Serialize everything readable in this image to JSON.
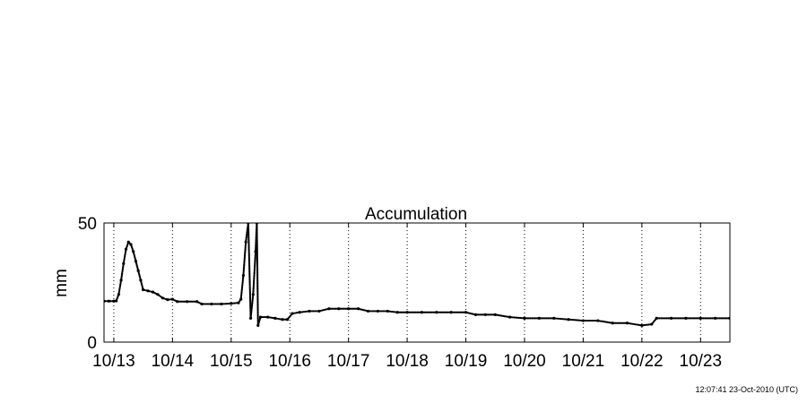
{
  "footer": {
    "timestamp": "12:07:41 23-Oct-2010 (UTC)"
  },
  "chart_data": {
    "type": "scatter",
    "title": "Accumulation",
    "xlabel": "",
    "ylabel": "mm",
    "x_unit": "date (Oct 2010)",
    "xlim": [
      "2010-10-12 20:00",
      "2010-10-23 12:00"
    ],
    "ylim": [
      0,
      50
    ],
    "y_ticks": [
      0,
      50
    ],
    "x_ticks": [
      {
        "date": "2010-10-13 00:00",
        "label": "10/13"
      },
      {
        "date": "2010-10-14 00:00",
        "label": "10/14"
      },
      {
        "date": "2010-10-15 00:00",
        "label": "10/15"
      },
      {
        "date": "2010-10-16 00:00",
        "label": "10/16"
      },
      {
        "date": "2010-10-17 00:00",
        "label": "10/17"
      },
      {
        "date": "2010-10-18 00:00",
        "label": "10/18"
      },
      {
        "date": "2010-10-19 00:00",
        "label": "10/19"
      },
      {
        "date": "2010-10-20 00:00",
        "label": "10/20"
      },
      {
        "date": "2010-10-21 00:00",
        "label": "10/21"
      },
      {
        "date": "2010-10-22 00:00",
        "label": "10/22"
      },
      {
        "date": "2010-10-23 00:00",
        "label": "10/23"
      }
    ],
    "grid": "vertical dotted lines at x ticks",
    "legend": "none",
    "colors": {
      "points": "#000000",
      "grid": "#000000",
      "frame": "#000000"
    },
    "series": [
      {
        "values": [
          [
            "2010-10-12 20:00",
            17.2
          ],
          [
            "2010-10-12 22:00",
            17.2
          ],
          [
            "2010-10-13 00:00",
            17.2
          ],
          [
            "2010-10-13 01:00",
            17.3
          ],
          [
            "2010-10-13 02:00",
            20.0
          ],
          [
            "2010-10-13 03:00",
            26.0
          ],
          [
            "2010-10-13 04:00",
            33.0
          ],
          [
            "2010-10-13 05:00",
            39.0
          ],
          [
            "2010-10-13 06:00",
            42.0
          ],
          [
            "2010-10-13 07:00",
            41.0
          ],
          [
            "2010-10-13 08:00",
            38.0
          ],
          [
            "2010-10-13 09:00",
            34.0
          ],
          [
            "2010-10-13 10:00",
            30.0
          ],
          [
            "2010-10-13 11:00",
            26.0
          ],
          [
            "2010-10-13 12:00",
            22.0
          ],
          [
            "2010-10-13 14:00",
            21.5
          ],
          [
            "2010-10-13 16:00",
            21.0
          ],
          [
            "2010-10-13 18:00",
            20.0
          ],
          [
            "2010-10-13 20:00",
            18.5
          ],
          [
            "2010-10-13 22:00",
            17.8
          ],
          [
            "2010-10-14 00:00",
            18.0
          ],
          [
            "2010-10-14 02:00",
            17.0
          ],
          [
            "2010-10-14 06:00",
            17.0
          ],
          [
            "2010-10-14 10:00",
            17.0
          ],
          [
            "2010-10-14 12:00",
            16.0
          ],
          [
            "2010-10-14 16:00",
            16.0
          ],
          [
            "2010-10-14 20:00",
            16.0
          ],
          [
            "2010-10-15 00:00",
            16.2
          ],
          [
            "2010-10-15 03:00",
            16.5
          ],
          [
            "2010-10-15 04:00",
            18.0
          ],
          [
            "2010-10-15 05:00",
            28.0
          ],
          [
            "2010-10-15 06:00",
            42.0
          ],
          [
            "2010-10-15 07:00",
            50.0
          ],
          [
            "2010-10-15 08:00",
            10.0
          ],
          [
            "2010-10-15 09:00",
            20.0
          ],
          [
            "2010-10-15 10:00",
            38.0
          ],
          [
            "2010-10-15 10:30",
            50.0
          ],
          [
            "2010-10-15 11:00",
            7.0
          ],
          [
            "2010-10-15 12:00",
            10.5
          ],
          [
            "2010-10-15 15:00",
            10.5
          ],
          [
            "2010-10-15 18:00",
            10.0
          ],
          [
            "2010-10-15 21:00",
            9.5
          ],
          [
            "2010-10-15 23:00",
            9.5
          ],
          [
            "2010-10-16 01:00",
            12.0
          ],
          [
            "2010-10-16 04:00",
            12.5
          ],
          [
            "2010-10-16 08:00",
            13.0
          ],
          [
            "2010-10-16 12:00",
            13.0
          ],
          [
            "2010-10-16 16:00",
            14.0
          ],
          [
            "2010-10-16 20:00",
            14.0
          ],
          [
            "2010-10-17 00:00",
            14.0
          ],
          [
            "2010-10-17 04:00",
            14.0
          ],
          [
            "2010-10-17 08:00",
            13.0
          ],
          [
            "2010-10-17 12:00",
            13.0
          ],
          [
            "2010-10-17 16:00",
            13.0
          ],
          [
            "2010-10-17 20:00",
            12.5
          ],
          [
            "2010-10-18 00:00",
            12.5
          ],
          [
            "2010-10-18 06:00",
            12.5
          ],
          [
            "2010-10-18 12:00",
            12.5
          ],
          [
            "2010-10-18 18:00",
            12.5
          ],
          [
            "2010-10-19 00:00",
            12.5
          ],
          [
            "2010-10-19 04:00",
            11.5
          ],
          [
            "2010-10-19 08:00",
            11.5
          ],
          [
            "2010-10-19 12:00",
            11.5
          ],
          [
            "2010-10-19 18:00",
            10.5
          ],
          [
            "2010-10-20 00:00",
            10.0
          ],
          [
            "2010-10-20 06:00",
            10.0
          ],
          [
            "2010-10-20 12:00",
            10.0
          ],
          [
            "2010-10-20 18:00",
            9.5
          ],
          [
            "2010-10-21 00:00",
            9.0
          ],
          [
            "2010-10-21 06:00",
            9.0
          ],
          [
            "2010-10-21 12:00",
            8.0
          ],
          [
            "2010-10-21 18:00",
            8.0
          ],
          [
            "2010-10-22 00:00",
            7.0
          ],
          [
            "2010-10-22 04:00",
            7.5
          ],
          [
            "2010-10-22 06:00",
            10.0
          ],
          [
            "2010-10-22 12:00",
            10.0
          ],
          [
            "2010-10-22 18:00",
            10.0
          ],
          [
            "2010-10-23 00:00",
            10.0
          ],
          [
            "2010-10-23 06:00",
            10.0
          ],
          [
            "2010-10-23 12:00",
            10.0
          ]
        ]
      }
    ]
  }
}
